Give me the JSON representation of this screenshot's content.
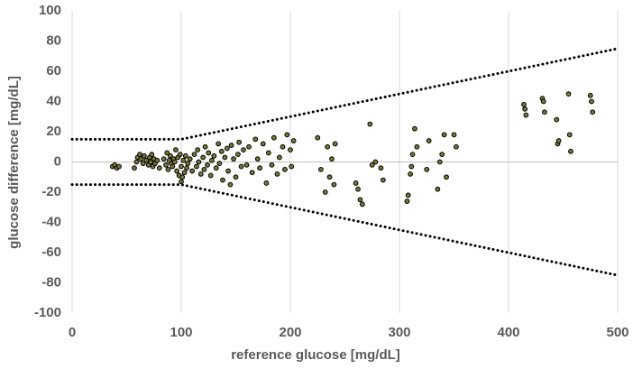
{
  "chart_data": {
    "type": "scatter",
    "xlabel": "reference glucose [mg/dL]",
    "ylabel": "glucose difference [mg/dL]",
    "xlim": [
      0,
      500
    ],
    "ylim": [
      -100,
      100
    ],
    "xticks": [
      0,
      100,
      200,
      300,
      400,
      500
    ],
    "yticks": [
      -100,
      -80,
      -60,
      -40,
      -20,
      0,
      20,
      40,
      60,
      80,
      100
    ],
    "grid": "x",
    "series": [
      {
        "color": "#77773a",
        "x": [
          37,
          39,
          41,
          43,
          57,
          59,
          60,
          62,
          63,
          65,
          66,
          68,
          70,
          71,
          72,
          73,
          74,
          75,
          76,
          78,
          80,
          84,
          86,
          87,
          88,
          89,
          90,
          91,
          92,
          93,
          94,
          95,
          96,
          97,
          98,
          99,
          100,
          100,
          101,
          102,
          103,
          104,
          105,
          106,
          108,
          110,
          112,
          114,
          115,
          116,
          118,
          120,
          121,
          122,
          124,
          125,
          127,
          128,
          130,
          132,
          134,
          135,
          137,
          138,
          140,
          142,
          143,
          145,
          146,
          148,
          150,
          152,
          153,
          155,
          157,
          160,
          162,
          165,
          168,
          170,
          172,
          175,
          178,
          180,
          183,
          185,
          188,
          190,
          193,
          195,
          197,
          200,
          201,
          203,
          225,
          228,
          232,
          234,
          236,
          238,
          240,
          241,
          260,
          262,
          264,
          266,
          273,
          275,
          278,
          283,
          285,
          307,
          308,
          310,
          311,
          312,
          314,
          316,
          325,
          327,
          335,
          337,
          339,
          341,
          343,
          350,
          352,
          414,
          415,
          416,
          431,
          432,
          433,
          444,
          445,
          446,
          455,
          456,
          457,
          475,
          476,
          477
        ],
        "values": [
          -3,
          -2,
          -4,
          -3,
          -4,
          0,
          3,
          5,
          2,
          -1,
          4,
          1,
          -2,
          3,
          0,
          5,
          -3,
          2,
          -1,
          1,
          -4,
          2,
          -2,
          6,
          -5,
          1,
          4,
          -1,
          -3,
          2,
          0,
          8,
          -6,
          3,
          -9,
          5,
          -13,
          -3,
          -10,
          1,
          -7,
          4,
          -4,
          -1,
          2,
          -6,
          5,
          -3,
          8,
          0,
          -8,
          3,
          -5,
          10,
          -2,
          6,
          -9,
          1,
          4,
          -4,
          12,
          -1,
          7,
          -12,
          3,
          9,
          -6,
          -15,
          11,
          2,
          -10,
          5,
          13,
          -3,
          8,
          -2,
          10,
          -7,
          15,
          2,
          -4,
          12,
          -14,
          6,
          -2,
          16,
          -8,
          3,
          10,
          -5,
          18,
          8,
          -3,
          14,
          16,
          -5,
          -20,
          10,
          -10,
          2,
          -15,
          12,
          -14,
          -18,
          -25,
          -28,
          25,
          -2,
          0,
          -4,
          -12,
          -26,
          -22,
          -8,
          -3,
          5,
          22,
          10,
          -5,
          14,
          -18,
          0,
          5,
          18,
          -10,
          18,
          10,
          38,
          35,
          31,
          42,
          40,
          33,
          28,
          12,
          14,
          45,
          18,
          7,
          44,
          40,
          33
        ]
      }
    ],
    "lines": [
      {
        "color": "#000000",
        "x": [
          0,
          100,
          500
        ],
        "values": [
          15,
          15,
          75
        ]
      },
      {
        "color": "#000000",
        "x": [
          0,
          100,
          500
        ],
        "values": [
          -15,
          -15,
          -75
        ]
      }
    ]
  }
}
